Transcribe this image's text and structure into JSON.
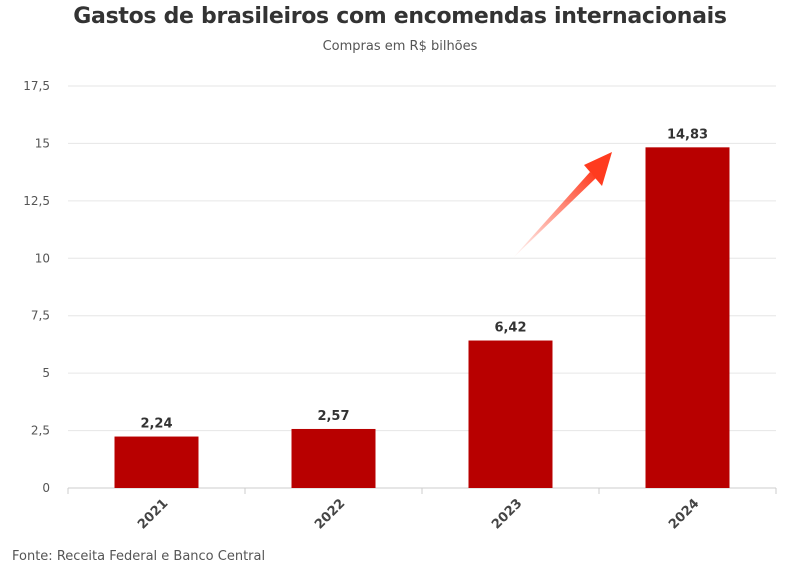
{
  "chart_data": {
    "type": "bar",
    "title": "Gastos de brasileiros com encomendas internacionais",
    "subtitle": "Compras em R$ bilhões",
    "categories": [
      "2021",
      "2022",
      "2023",
      "2024"
    ],
    "values": [
      2.24,
      2.57,
      6.42,
      14.83
    ],
    "value_labels": [
      "2,24",
      "2,57",
      "6,42",
      "14,83"
    ],
    "y_ticks": [
      0,
      2.5,
      5,
      7.5,
      10,
      12.5,
      15,
      17.5
    ],
    "y_tick_labels": [
      "0",
      "2,5",
      "5",
      "7,5",
      "10",
      "12,5",
      "15",
      "17,5"
    ],
    "ylim": [
      0,
      17.5
    ],
    "xlabel": "",
    "ylabel": "",
    "grid": true,
    "legend": false,
    "bar_color": "#b80000",
    "arrow_color": "#ff3b1f",
    "annotation": "upward arrow pointing to 2024 bar",
    "source": "Fonte: Receita Federal e Banco Central"
  }
}
